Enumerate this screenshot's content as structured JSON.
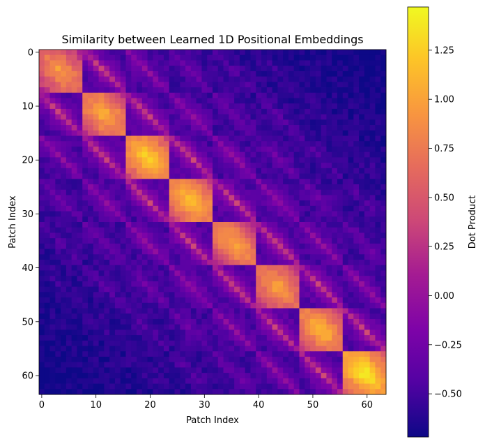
{
  "chart_data": {
    "type": "heatmap",
    "title": "Similarity between Learned 1D Positional Embeddings",
    "xlabel": "Patch Index",
    "ylabel": "Patch Index",
    "x_ticks": [
      0,
      10,
      20,
      30,
      40,
      50,
      60
    ],
    "y_ticks": [
      0,
      10,
      20,
      30,
      40,
      50,
      60
    ],
    "xlim": [
      -0.5,
      63.5
    ],
    "ylim": [
      63.5,
      -0.5
    ],
    "n_rows": 64,
    "n_cols": 64,
    "colormap": "plasma",
    "colorbar": {
      "label": "Dot Product",
      "vmin": -0.72,
      "vmax": 1.47,
      "ticks": [
        -0.5,
        -0.25,
        0.0,
        0.25,
        0.5,
        0.75,
        1.0,
        1.25
      ],
      "tick_labels": [
        "−0.50",
        "−0.25",
        "0.00",
        "0.25",
        "0.50",
        "0.75",
        "1.00",
        "1.25"
      ]
    },
    "structure": {
      "diagonal_peak": [
        1.0,
        1.12,
        1.32,
        1.22,
        1.05,
        1.02,
        1.15,
        1.45
      ],
      "block_size": 8,
      "within_block_offdiag": 0.55,
      "same_column_other_block": 0.5,
      "diagonal_decay": 0.018,
      "background": -0.45
    }
  }
}
